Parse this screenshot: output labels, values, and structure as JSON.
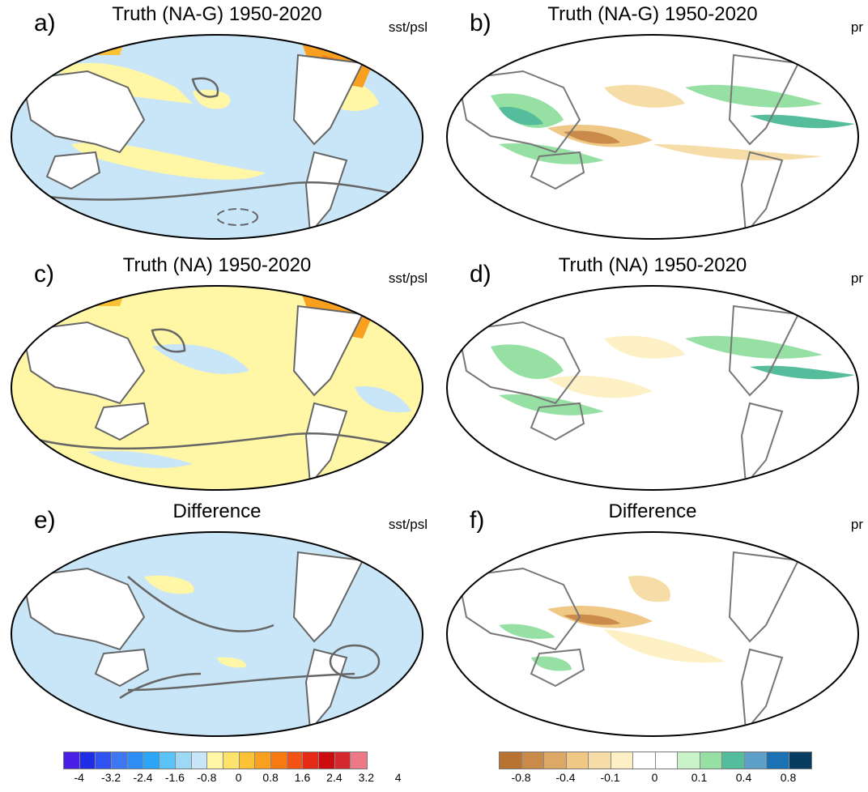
{
  "panels": [
    {
      "label": "a)",
      "title": "Truth (NA-G) 1950-2020",
      "var": "sst/psl"
    },
    {
      "label": "b)",
      "title": "Truth (NA-G) 1950-2020",
      "var": "pr"
    },
    {
      "label": "c)",
      "title": "Truth (NA) 1950-2020",
      "var": "sst/psl"
    },
    {
      "label": "d)",
      "title": "Truth (NA) 1950-2020",
      "var": "pr"
    },
    {
      "label": "e)",
      "title": "Difference",
      "var": "sst/psl"
    },
    {
      "label": "f)",
      "title": "Difference",
      "var": "pr"
    }
  ],
  "colorbars": {
    "sst": {
      "colors": [
        "#4a1fe6",
        "#1f2ee6",
        "#2f52f0",
        "#3f76f2",
        "#2d8df5",
        "#2ba5f7",
        "#5cc3f8",
        "#9dd8f5",
        "#c9e6f8",
        "#fff6a6",
        "#fde36a",
        "#fbc236",
        "#f9a020",
        "#f77a10",
        "#f25214",
        "#e42a14",
        "#cc0c10",
        "#d2282e",
        "#ef7886"
      ],
      "ticks": [
        "-4",
        "-3.2",
        "-2.4",
        "-1.6",
        "-0.8",
        "0",
        "0.8",
        "1.6",
        "2.4",
        "3.2",
        "4"
      ]
    },
    "pr": {
      "colors": [
        "#b87333",
        "#c98a4a",
        "#dba866",
        "#efc886",
        "#f6dca6",
        "#fcf0c4",
        "#ffffff",
        "#ffffff",
        "#caf2c8",
        "#96e0a4",
        "#56bd9c",
        "#5ea0c8",
        "#1a72b4",
        "#083d62"
      ],
      "ticks": [
        "-0.8",
        "-0.4",
        "-0.1",
        "0",
        "0.1",
        "0.4",
        "0.8"
      ]
    }
  }
}
